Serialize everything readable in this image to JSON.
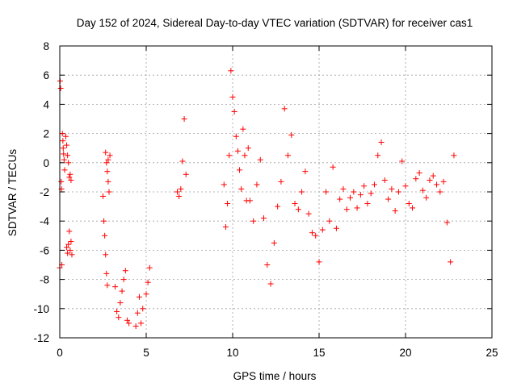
{
  "chart_data": {
    "type": "scatter",
    "title": "Day 152 of 2024, Sidereal Day-to-day VTEC variation (SDTVAR) for receiver cas1",
    "xlabel": "GPS time / hours",
    "ylabel": "SDTVAR / TECUs",
    "xlim": [
      0,
      25
    ],
    "ylim": [
      -12,
      8
    ],
    "x_ticks": [
      0,
      5,
      10,
      15,
      20,
      25
    ],
    "x_tick_labels": [
      "0",
      "5",
      "10",
      "15",
      "20",
      "25"
    ],
    "y_ticks": [
      -12,
      -10,
      -8,
      -6,
      -4,
      -2,
      0,
      2,
      4,
      6,
      8
    ],
    "y_tick_labels": [
      "-12",
      "-10",
      "-8",
      "-6",
      "-4",
      "-2",
      "0",
      "2",
      "4",
      "6",
      "8"
    ],
    "grid": true,
    "marker": "+",
    "marker_color": "#ff0000",
    "series": [
      {
        "name": "SDTVAR",
        "x": [
          0.0,
          0.02,
          0.05,
          0.08,
          0.1,
          0.12,
          0.15,
          0.18,
          0.2,
          0.22,
          0.25,
          0.28,
          0.35,
          0.4,
          0.45,
          0.5,
          0.55,
          0.6,
          0.65,
          0.4,
          0.45,
          0.5,
          0.55,
          0.6,
          0.65,
          0.7,
          2.5,
          2.55,
          2.6,
          2.65,
          2.7,
          2.75,
          2.8,
          2.65,
          2.7,
          2.75,
          2.8,
          2.85,
          2.9,
          3.2,
          3.3,
          3.4,
          3.5,
          3.6,
          3.7,
          3.8,
          3.9,
          4.0,
          4.4,
          4.5,
          4.6,
          4.7,
          4.8,
          5.0,
          5.1,
          5.2,
          6.8,
          6.9,
          7.0,
          7.1,
          7.2,
          7.3,
          9.5,
          9.6,
          9.7,
          9.8,
          9.9,
          10.0,
          10.1,
          10.2,
          10.3,
          10.4,
          10.5,
          10.6,
          10.7,
          10.8,
          10.9,
          11.0,
          11.2,
          11.4,
          11.6,
          11.8,
          12.0,
          12.2,
          12.4,
          12.6,
          12.8,
          13.0,
          13.2,
          13.4,
          13.6,
          13.8,
          14.0,
          14.2,
          14.4,
          14.6,
          14.8,
          15.0,
          15.2,
          15.4,
          15.6,
          15.8,
          16.0,
          16.2,
          16.4,
          16.6,
          16.8,
          17.0,
          17.2,
          17.4,
          17.6,
          17.8,
          18.0,
          18.2,
          18.4,
          18.6,
          18.8,
          19.0,
          19.2,
          19.4,
          19.6,
          19.8,
          20.0,
          20.2,
          20.4,
          20.6,
          20.8,
          21.0,
          21.2,
          21.4,
          21.6,
          21.8,
          22.0,
          22.2,
          22.4,
          22.6,
          22.8
        ],
        "y": [
          -7.2,
          5.6,
          5.1,
          -1.3,
          -1.8,
          -7.0,
          2.0,
          1.5,
          1.0,
          0.6,
          0.2,
          -0.5,
          1.8,
          1.2,
          0.5,
          0.0,
          -1.0,
          -0.8,
          -1.2,
          -5.8,
          -6.2,
          -5.6,
          -4.7,
          -6.0,
          -5.4,
          -6.3,
          -2.3,
          -4.0,
          -5.0,
          -6.3,
          -7.6,
          -8.4,
          0.2,
          0.7,
          0.0,
          -0.6,
          -1.3,
          -2.0,
          0.5,
          -8.5,
          -10.2,
          -10.6,
          -9.6,
          -8.8,
          -8.0,
          -7.4,
          -10.8,
          -11.0,
          -11.2,
          -10.3,
          -9.2,
          -11.0,
          -10.0,
          -9.0,
          -8.2,
          -7.2,
          -2.0,
          -2.3,
          -1.8,
          0.1,
          3.0,
          -0.8,
          -1.5,
          -4.4,
          -2.8,
          0.5,
          6.3,
          4.5,
          3.5,
          1.8,
          0.8,
          -0.5,
          -1.8,
          2.3,
          0.5,
          -2.6,
          1.0,
          -2.6,
          -4.0,
          -1.5,
          0.2,
          -3.8,
          -7.0,
          -8.3,
          -5.5,
          -3.0,
          -1.3,
          3.7,
          0.5,
          1.9,
          -2.8,
          -3.2,
          -2.0,
          -0.6,
          -3.5,
          -4.8,
          -5.0,
          -6.8,
          -4.6,
          -2.0,
          -4.0,
          -0.3,
          -4.5,
          -2.5,
          -1.8,
          -3.2,
          -2.4,
          -2.0,
          -3.1,
          -2.2,
          -1.6,
          -2.8,
          -2.1,
          -1.5,
          0.5,
          1.4,
          -1.2,
          -2.5,
          -1.8,
          -3.3,
          -2.0,
          0.1,
          -1.6,
          -2.8,
          -3.1,
          -1.1,
          -0.7,
          -1.9,
          -2.4,
          -1.2,
          -0.9,
          -1.5,
          -2.0,
          -1.3,
          -4.1,
          -6.8,
          0.5
        ]
      }
    ]
  }
}
